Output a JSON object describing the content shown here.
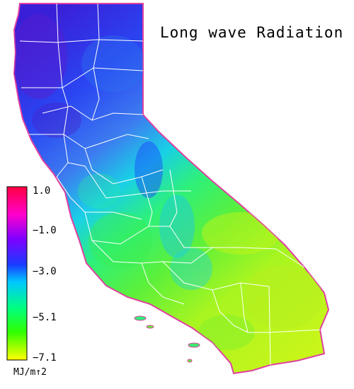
{
  "title": "Long wave Radiation",
  "legend": {
    "ticks": [
      "1.0",
      "−1.0",
      "−3.0",
      "−5.1",
      "−7.1"
    ],
    "units": "MJ/m↑2",
    "gradient": [
      "#ff0040",
      "#ff00cc",
      "#8000ff",
      "#1a3cff",
      "#00c8ff",
      "#00ff80",
      "#30ff00",
      "#ffff00"
    ]
  },
  "map": {
    "region": "California",
    "boundary_color": "#ffffff",
    "coast_fringe_color": "#e040a0"
  }
}
